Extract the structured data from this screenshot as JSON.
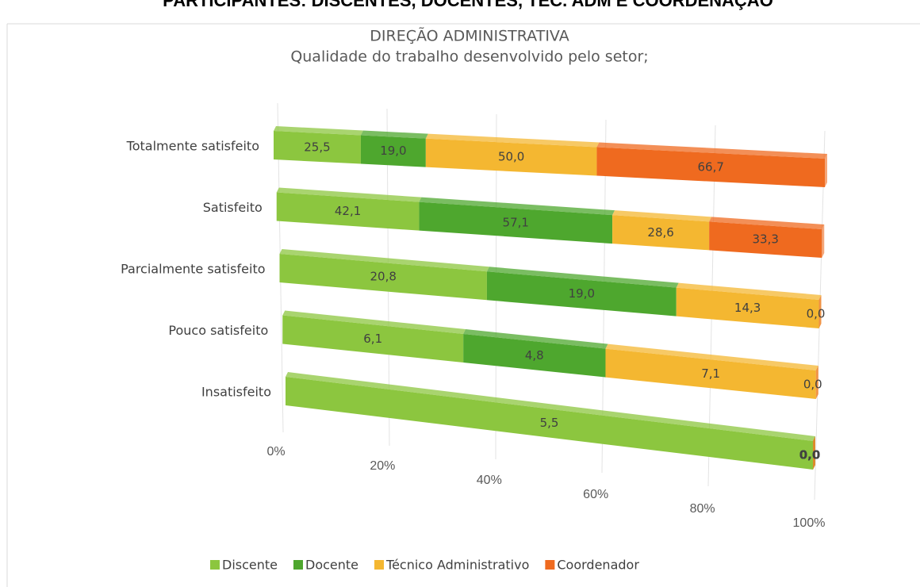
{
  "header": "PARTICIPANTES: DISCENTES, DOCENTES, TÉC. ADM E COORDENAÇÃO",
  "chart_data": {
    "type": "bar",
    "orientation": "horizontal",
    "stacking": "percent",
    "title": "DIREÇÃO ADMINISTRATIVA",
    "subtitle": "Qualidade do trabalho desenvolvido pelo setor;",
    "categories": [
      "Totalmente satisfeito",
      "Satisfeito",
      "Parcialmente satisfeito",
      "Pouco satisfeito",
      "Insatisfeito"
    ],
    "series": [
      {
        "name": "Discente",
        "color": "#8cc63f",
        "values": [
          25.5,
          42.1,
          20.8,
          6.1,
          5.5
        ],
        "value_labels": [
          "25,5",
          "42,1",
          "20,8",
          "6,1",
          "5,5"
        ]
      },
      {
        "name": "Docente",
        "color": "#4ea72e",
        "values": [
          19.0,
          57.1,
          19.0,
          4.8,
          0.0
        ],
        "value_labels": [
          "19,0",
          "57,1",
          "19,0",
          "4,8",
          "0,0"
        ]
      },
      {
        "name": "Técnico Administrativo",
        "color": "#f4b731",
        "values": [
          50.0,
          28.6,
          14.3,
          7.1,
          0.0
        ],
        "value_labels": [
          "50,0",
          "28,6",
          "14,3",
          "7,1",
          "0,0"
        ]
      },
      {
        "name": "Coordenador",
        "color": "#ef6a1f",
        "values": [
          66.7,
          33.3,
          0.0,
          0.0,
          0.0
        ],
        "value_labels": [
          "66,7",
          "33,3",
          "0,0",
          "0,0",
          "0,0"
        ]
      }
    ],
    "xlim": [
      0,
      100
    ],
    "xticks": [
      {
        "value": 0,
        "label": "0%"
      },
      {
        "value": 20,
        "label": "20%"
      },
      {
        "value": 40,
        "label": "40%"
      },
      {
        "value": 60,
        "label": "60%"
      },
      {
        "value": 80,
        "label": "80%"
      },
      {
        "value": 100,
        "label": "100%"
      }
    ],
    "grid": true,
    "legend": "bottom"
  }
}
